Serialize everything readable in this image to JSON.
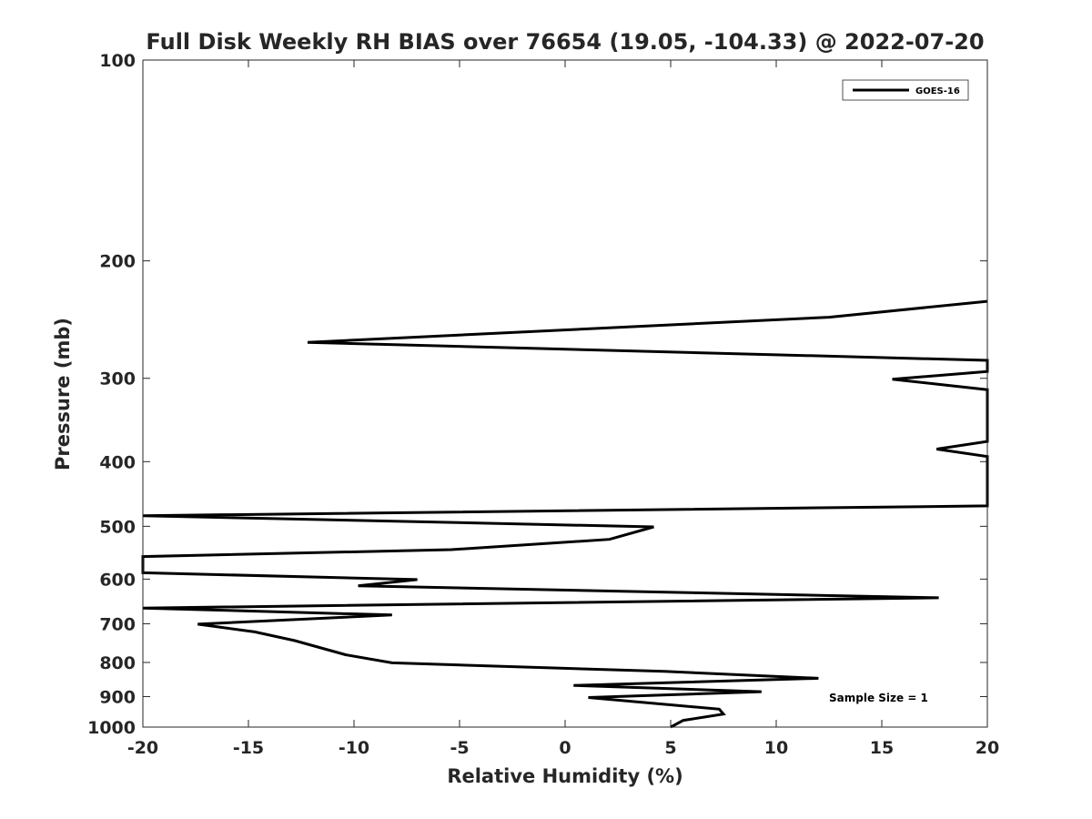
{
  "chart_data": {
    "type": "line",
    "title": "Full Disk Weekly RH BIAS over 76654 (19.05, -104.33) @ 2022-07-20",
    "xlabel": "Relative Humidity (%)",
    "ylabel": "Pressure (mb)",
    "xlim": [
      -20,
      20
    ],
    "ylim": [
      100,
      1000
    ],
    "y_scale": "log",
    "y_reversed": true,
    "grid": false,
    "xticks": [
      "-20",
      "-15",
      "-10",
      "-5",
      "0",
      "5",
      "10",
      "15",
      "20"
    ],
    "yticks": [
      "100",
      "200",
      "300",
      "400",
      "500",
      "600",
      "700",
      "800",
      "900",
      "1000"
    ],
    "legend_placement": "top-right",
    "annotation": "Sample Size = 1",
    "series": [
      {
        "name": "GOES-16",
        "color": "#000000",
        "points": [
          {
            "x": 20,
            "y": 230
          },
          {
            "x": 12.5,
            "y": 243
          },
          {
            "x": -12.2,
            "y": 265
          },
          {
            "x": 20,
            "y": 282
          },
          {
            "x": 20,
            "y": 293
          },
          {
            "x": 15.5,
            "y": 301
          },
          {
            "x": 20,
            "y": 312
          },
          {
            "x": 20,
            "y": 373
          },
          {
            "x": 17.6,
            "y": 383
          },
          {
            "x": 20,
            "y": 393
          },
          {
            "x": 20,
            "y": 466
          },
          {
            "x": -20,
            "y": 482
          },
          {
            "x": 4.2,
            "y": 501
          },
          {
            "x": 2.1,
            "y": 523
          },
          {
            "x": -5.4,
            "y": 542
          },
          {
            "x": -20,
            "y": 555
          },
          {
            "x": -20,
            "y": 587
          },
          {
            "x": -7,
            "y": 601
          },
          {
            "x": -9.8,
            "y": 614
          },
          {
            "x": 17.7,
            "y": 640
          },
          {
            "x": -20,
            "y": 663
          },
          {
            "x": -8.2,
            "y": 679
          },
          {
            "x": -17.4,
            "y": 701
          },
          {
            "x": -14.7,
            "y": 720
          },
          {
            "x": -12.8,
            "y": 742
          },
          {
            "x": -10.4,
            "y": 779
          },
          {
            "x": -8.2,
            "y": 801
          },
          {
            "x": 4.7,
            "y": 825
          },
          {
            "x": 12,
            "y": 845
          },
          {
            "x": 0.4,
            "y": 866
          },
          {
            "x": 9.3,
            "y": 885
          },
          {
            "x": 1.1,
            "y": 903
          },
          {
            "x": 7.3,
            "y": 940
          },
          {
            "x": 7.5,
            "y": 956
          },
          {
            "x": 5.6,
            "y": 977
          },
          {
            "x": 5,
            "y": 1000
          }
        ]
      }
    ]
  }
}
